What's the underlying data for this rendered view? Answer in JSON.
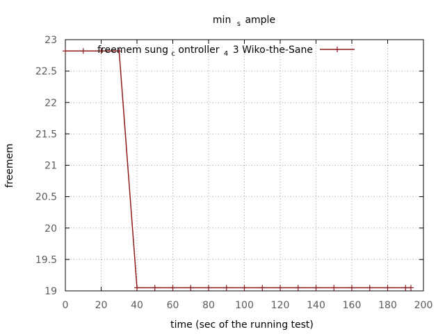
{
  "chart_data": {
    "type": "line",
    "title": {
      "parts": [
        "min",
        "s",
        "ample"
      ]
    },
    "xlabel": "time (sec of the running test)",
    "ylabel": "freemem",
    "xlim": [
      0,
      200
    ],
    "ylim": [
      19,
      23
    ],
    "xticks": [
      0,
      20,
      40,
      60,
      80,
      100,
      120,
      140,
      160,
      180,
      200
    ],
    "yticks": [
      19,
      19.5,
      20,
      20.5,
      21,
      21.5,
      22,
      22.5,
      23
    ],
    "grid": true,
    "legend_position": "top-right",
    "series": [
      {
        "legend": {
          "parts": [
            "freemem sung",
            "c",
            "ontroller",
            "4",
            "3 Wiko-the-Sane"
          ]
        },
        "color": "#8b1a1a",
        "x": [
          0,
          10,
          20,
          30,
          40,
          50,
          60,
          70,
          80,
          90,
          100,
          110,
          120,
          130,
          140,
          150,
          160,
          170,
          180,
          190,
          193
        ],
        "y": [
          22.82,
          22.82,
          22.82,
          22.82,
          19.05,
          19.05,
          19.05,
          19.05,
          19.05,
          19.05,
          19.05,
          19.05,
          19.05,
          19.05,
          19.05,
          19.05,
          19.05,
          19.05,
          19.05,
          19.05,
          19.05
        ]
      }
    ]
  }
}
